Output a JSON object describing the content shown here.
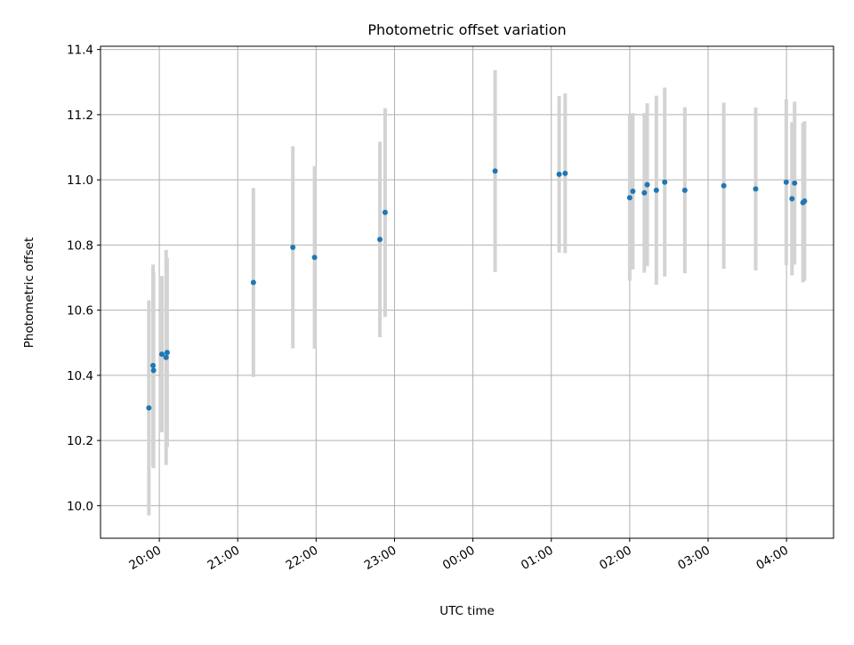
{
  "chart_data": {
    "type": "scatter",
    "title": "Photometric offset variation",
    "xlabel": "UTC time",
    "ylabel": "Photometric offset",
    "xlim_minutes": [
      1155,
      1716
    ],
    "ylim": [
      9.9,
      11.41
    ],
    "x_ticks": [
      {
        "minutes": 1200,
        "label": "20:00"
      },
      {
        "minutes": 1260,
        "label": "21:00"
      },
      {
        "minutes": 1320,
        "label": "22:00"
      },
      {
        "minutes": 1380,
        "label": "23:00"
      },
      {
        "minutes": 1440,
        "label": "00:00"
      },
      {
        "minutes": 1500,
        "label": "01:00"
      },
      {
        "minutes": 1560,
        "label": "02:00"
      },
      {
        "minutes": 1620,
        "label": "03:00"
      },
      {
        "minutes": 1680,
        "label": "04:00"
      }
    ],
    "y_ticks": [
      10.0,
      10.2,
      10.4,
      10.6,
      10.8,
      11.0,
      11.2,
      11.4
    ],
    "y_tick_labels": [
      "10.0",
      "10.2",
      "10.4",
      "10.6",
      "10.8",
      "11.0",
      "11.2",
      "11.4"
    ],
    "grid": true,
    "point_color": "#1f77b4",
    "errorbar_color": "#d3d3d3",
    "points": [
      {
        "time": "19:52",
        "minutes": 1192.0,
        "y": 10.3,
        "err": 0.33
      },
      {
        "time": "19:55",
        "minutes": 1195.2,
        "y": 10.43,
        "err": 0.31
      },
      {
        "time": "19:55",
        "minutes": 1195.6,
        "y": 10.415,
        "err": 0.3
      },
      {
        "time": "20:02",
        "minutes": 1202.0,
        "y": 10.465,
        "err": 0.24
      },
      {
        "time": "20:05",
        "minutes": 1205.2,
        "y": 10.455,
        "err": 0.33
      },
      {
        "time": "20:06",
        "minutes": 1206.0,
        "y": 10.47,
        "err": 0.29
      },
      {
        "time": "21:12",
        "minutes": 1272.0,
        "y": 10.685,
        "err": 0.29
      },
      {
        "time": "21:42",
        "minutes": 1302.2,
        "y": 10.793,
        "err": 0.31
      },
      {
        "time": "21:59",
        "minutes": 1318.8,
        "y": 10.762,
        "err": 0.28
      },
      {
        "time": "22:49",
        "minutes": 1368.8,
        "y": 10.817,
        "err": 0.3
      },
      {
        "time": "22:53",
        "minutes": 1372.8,
        "y": 10.9,
        "err": 0.32
      },
      {
        "time": "00:17",
        "minutes": 1457.0,
        "y": 11.027,
        "err": 0.31
      },
      {
        "time": "01:06",
        "minutes": 1506.0,
        "y": 11.017,
        "err": 0.24
      },
      {
        "time": "01:11",
        "minutes": 1510.6,
        "y": 11.02,
        "err": 0.245
      },
      {
        "time": "02:00",
        "minutes": 1560.0,
        "y": 10.945,
        "err": 0.255
      },
      {
        "time": "02:02",
        "minutes": 1562.4,
        "y": 10.965,
        "err": 0.24
      },
      {
        "time": "02:11",
        "minutes": 1571.2,
        "y": 10.96,
        "err": 0.245
      },
      {
        "time": "02:13",
        "minutes": 1573.4,
        "y": 10.985,
        "err": 0.25
      },
      {
        "time": "02:20",
        "minutes": 1580.4,
        "y": 10.968,
        "err": 0.29
      },
      {
        "time": "02:27",
        "minutes": 1586.8,
        "y": 10.993,
        "err": 0.29
      },
      {
        "time": "02:42",
        "minutes": 1602.2,
        "y": 10.968,
        "err": 0.255
      },
      {
        "time": "03:12",
        "minutes": 1632.0,
        "y": 10.982,
        "err": 0.255
      },
      {
        "time": "03:36",
        "minutes": 1656.4,
        "y": 10.972,
        "err": 0.25
      },
      {
        "time": "04:00",
        "minutes": 1679.8,
        "y": 10.993,
        "err": 0.255
      },
      {
        "time": "04:04",
        "minutes": 1684.2,
        "y": 10.942,
        "err": 0.235
      },
      {
        "time": "04:06",
        "minutes": 1686.2,
        "y": 10.99,
        "err": 0.25
      },
      {
        "time": "04:13",
        "minutes": 1692.6,
        "y": 10.93,
        "err": 0.245
      },
      {
        "time": "04:14",
        "minutes": 1693.8,
        "y": 10.935,
        "err": 0.245
      }
    ]
  }
}
